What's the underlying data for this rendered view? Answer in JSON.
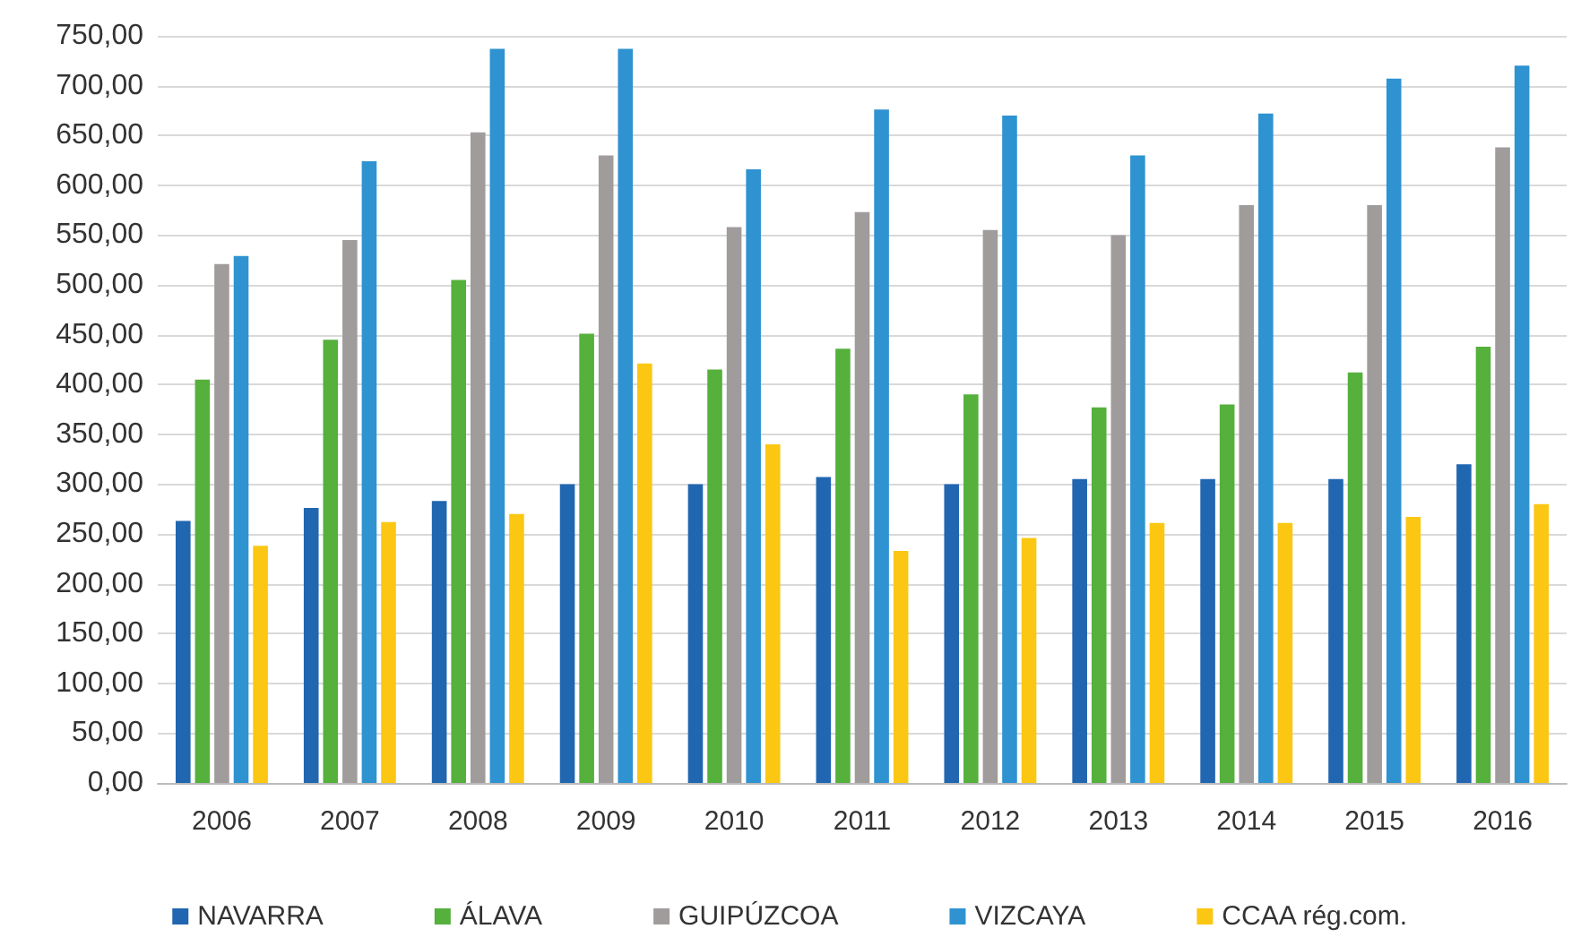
{
  "chart_data": {
    "type": "bar",
    "categories": [
      "2006",
      "2007",
      "2008",
      "2009",
      "2010",
      "2011",
      "2012",
      "2013",
      "2014",
      "2015",
      "2016"
    ],
    "series": [
      {
        "name": "NAVARRA",
        "color": "#2166b0",
        "values": [
          263,
          276,
          283,
          300,
          300,
          307,
          300,
          305,
          305,
          305,
          320
        ]
      },
      {
        "name": "ÁLAVA",
        "color": "#55b03c",
        "values": [
          405,
          445,
          505,
          451,
          415,
          436,
          390,
          377,
          380,
          412,
          438
        ]
      },
      {
        "name": "GUIPÚZCOA",
        "color": "#a09c9c",
        "values": [
          521,
          545,
          653,
          630,
          558,
          573,
          555,
          550,
          580,
          580,
          638
        ]
      },
      {
        "name": "VIZCAYA",
        "color": "#2e93d0",
        "values": [
          529,
          624,
          737,
          737,
          616,
          676,
          670,
          630,
          672,
          707,
          720
        ]
      },
      {
        "name": "CCAA rég.com.",
        "color": "#fcc712",
        "values": [
          238,
          262,
          270,
          421,
          340,
          233,
          246,
          261,
          261,
          267,
          280
        ]
      }
    ],
    "ylim": [
      0,
      750
    ],
    "yticks": [
      {
        "value": 0,
        "label": "0,00"
      },
      {
        "value": 50,
        "label": "50,00"
      },
      {
        "value": 100,
        "label": "100,00"
      },
      {
        "value": 150,
        "label": "150,00"
      },
      {
        "value": 200,
        "label": "200,00"
      },
      {
        "value": 250,
        "label": "250,00"
      },
      {
        "value": 300,
        "label": "300,00"
      },
      {
        "value": 350,
        "label": "350,00"
      },
      {
        "value": 400,
        "label": "400,00"
      },
      {
        "value": 450,
        "label": "450,00"
      },
      {
        "value": 500,
        "label": "500,00"
      },
      {
        "value": 550,
        "label": "550,00"
      },
      {
        "value": 600,
        "label": "600,00"
      },
      {
        "value": 650,
        "label": "650,00"
      },
      {
        "value": 700,
        "label": "700,00"
      },
      {
        "value": 750,
        "label": "750,00"
      }
    ],
    "grid": "y",
    "legend": "bottom"
  }
}
